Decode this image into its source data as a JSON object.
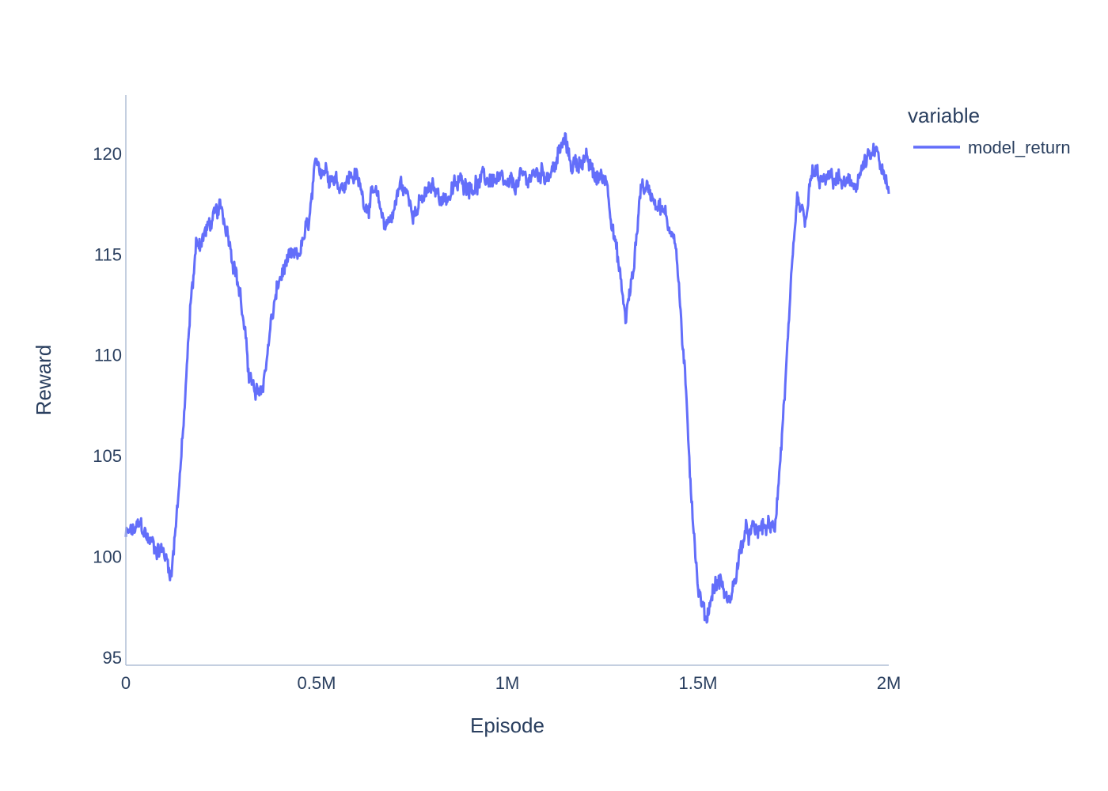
{
  "chart_data": {
    "type": "line",
    "xlabel": "Episode",
    "ylabel": "Reward",
    "xlim": [
      0,
      2000000
    ],
    "ylim": [
      94.6,
      122.9
    ],
    "x_ticks": [
      {
        "value": 0,
        "label": "0"
      },
      {
        "value": 500000,
        "label": "0.5M"
      },
      {
        "value": 1000000,
        "label": "1M"
      },
      {
        "value": 1500000,
        "label": "1.5M"
      },
      {
        "value": 2000000,
        "label": "2M"
      }
    ],
    "y_ticks": [
      {
        "value": 95,
        "label": "95"
      },
      {
        "value": 100,
        "label": "100"
      },
      {
        "value": 105,
        "label": "105"
      },
      {
        "value": 110,
        "label": "110"
      },
      {
        "value": 115,
        "label": "115"
      },
      {
        "value": 120,
        "label": "120"
      }
    ],
    "grid": false,
    "legend": {
      "title": "variable",
      "position": "top-right"
    },
    "series": [
      {
        "name": "model_return",
        "color": "#636efa",
        "noise_amplitude": 0.35,
        "x": [
          0,
          20000,
          40000,
          60000,
          80000,
          100000,
          120000,
          130000,
          150000,
          170000,
          185000,
          200000,
          220000,
          250000,
          270000,
          300000,
          320000,
          340000,
          360000,
          380000,
          400000,
          420000,
          450000,
          480000,
          500000,
          530000,
          560000,
          600000,
          630000,
          650000,
          680000,
          700000,
          720000,
          760000,
          800000,
          840000,
          880000,
          920000,
          960000,
          1000000,
          1040000,
          1080000,
          1120000,
          1150000,
          1170000,
          1200000,
          1230000,
          1260000,
          1280000,
          1310000,
          1330000,
          1350000,
          1380000,
          1400000,
          1420000,
          1440000,
          1460000,
          1480000,
          1500000,
          1520000,
          1540000,
          1560000,
          1580000,
          1600000,
          1620000,
          1650000,
          1680000,
          1700000,
          1720000,
          1740000,
          1760000,
          1780000,
          1800000,
          1830000,
          1860000,
          1900000,
          1940000,
          1970000,
          2000000
        ],
        "values": [
          101.0,
          101.2,
          101.5,
          100.8,
          100.5,
          100.2,
          99.2,
          101.5,
          106.0,
          112.5,
          115.5,
          115.8,
          116.5,
          117.2,
          116.0,
          113.0,
          109.5,
          107.8,
          108.5,
          111.5,
          113.5,
          114.5,
          114.8,
          116.5,
          119.5,
          119.2,
          118.5,
          119.0,
          117.5,
          118.0,
          116.5,
          117.0,
          118.5,
          117.2,
          118.2,
          117.8,
          118.6,
          118.5,
          118.8,
          118.2,
          118.7,
          119.0,
          119.2,
          120.6,
          119.4,
          119.8,
          118.8,
          118.8,
          116.0,
          111.8,
          114.0,
          118.5,
          118.0,
          117.5,
          116.5,
          116.0,
          110.5,
          104.0,
          98.5,
          96.8,
          98.5,
          98.8,
          97.5,
          99.2,
          101.0,
          101.2,
          101.5,
          101.2,
          106.0,
          112.0,
          117.5,
          116.5,
          119.0,
          118.5,
          118.8,
          118.2,
          119.5,
          120.0,
          117.8
        ]
      }
    ]
  }
}
